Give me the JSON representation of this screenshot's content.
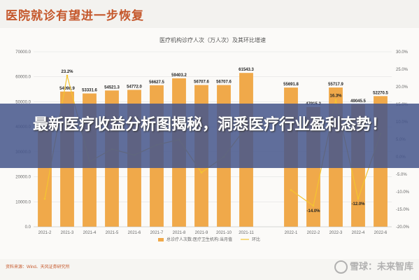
{
  "headline": "医院就诊有望进一步恢复",
  "overlay_title": "最新医疗收益分析图揭秘，洞悉医疗行业盈利态势！",
  "source_note": "资料来源：Wind、天风证券研究所",
  "watermark": "雪球：未来智库",
  "colors": {
    "bar": "#f0a94a",
    "line": "#f4c430",
    "headline": "#c5582c",
    "band": "#46568c"
  },
  "chart_data": {
    "type": "bar",
    "title": "医疗机构诊疗人次（万人次）及其环比增速",
    "categories": [
      "2021-2",
      "2021-3",
      "2021-4",
      "2021-5",
      "2021-6",
      "2021-7",
      "2021-8",
      "2021-9",
      "2021-10",
      "2021-11",
      "",
      "2022-1",
      "2022-2",
      "2022-3",
      "2022-4",
      "2022-6"
    ],
    "series": [
      {
        "name": "总诊疗人次数:医疗卫生机构:当月值",
        "axis": "left",
        "values": [
          43900,
          54098.9,
          53331.6,
          54521.3,
          54772,
          56627.5,
          59403.2,
          56707.6,
          56707.6,
          61543.3,
          null,
          55691.8,
          47915.2,
          55717.9,
          49045.5,
          52270.5
        ]
      },
      {
        "name": "环比",
        "axis": "right",
        "values": [
          -12,
          23.2,
          -1.4,
          2.2,
          0.5,
          3.4,
          4.9,
          -4.5,
          0,
          8.5,
          null,
          -9.5,
          -14.0,
          16.3,
          -12.0,
          6.6
        ]
      }
    ],
    "value_labels": [
      "",
      "54098.9",
      "53331.6",
      "54521.3",
      "54772.0",
      "56627.5",
      "59403.2",
      "56707.6",
      "56707.6",
      "61543.3",
      "",
      "55691.8",
      "47915.2",
      "55717.9",
      "49045.5",
      "52270.5"
    ],
    "line_labels": [
      {
        "index": 1,
        "text": "23.2%"
      },
      {
        "index": 12,
        "text": "-14.0%"
      },
      {
        "index": 13,
        "text": "16.3%"
      },
      {
        "index": 14,
        "text": "-12.0%"
      }
    ],
    "ylim": [
      0,
      70000
    ],
    "yticks": [
      "0.0",
      "10000.0",
      "20000.0",
      "30000.0",
      "40000.0",
      "50000.0",
      "60000.0",
      "70000.0"
    ],
    "y2lim": [
      -20,
      30
    ],
    "y2ticks": [
      "-20.0%",
      "-15.0%",
      "-10.0%",
      "-5.0%",
      "0.0%",
      "5.0%",
      "10.0%",
      "15.0%",
      "20.0%",
      "25.0%",
      "30.0%"
    ],
    "legend": [
      "总诊疗人次数:医疗卫生机构:当月值",
      "环比"
    ],
    "legend_position": "bottom",
    "grid": true
  }
}
